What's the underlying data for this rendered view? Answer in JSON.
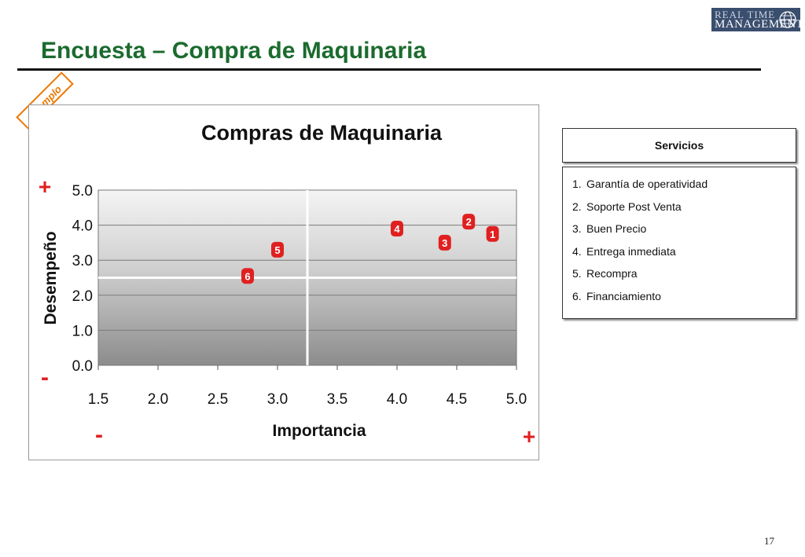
{
  "slide": {
    "title": "Encuesta – Compra de Maquinaria",
    "stamp": "Ejemplo",
    "logo_line1": "REAL TIME",
    "logo_line2": "MANAGEMENT",
    "page_number": "17"
  },
  "colors": {
    "title": "#1b6b2e",
    "marker": "#e02020",
    "stamp": "#ee7700"
  },
  "chart_data": {
    "type": "scatter",
    "title": "Compras de Maquinaria",
    "xlabel": "Importancia",
    "ylabel": "Desempeño",
    "xlim": [
      1.5,
      5.0
    ],
    "ylim": [
      0.0,
      5.0
    ],
    "x_ticks": [
      "1.5",
      "2.0",
      "2.5",
      "3.0",
      "3.5",
      "4.0",
      "4.5",
      "5.0"
    ],
    "y_ticks": [
      "0.0",
      "1.0",
      "2.0",
      "3.0",
      "4.0",
      "5.0"
    ],
    "quadrant_lines": {
      "x": 3.25,
      "y": 2.5
    },
    "axis_markers": {
      "y_high": "+",
      "y_low": "-",
      "x_low": "-",
      "x_high": "+"
    },
    "points": [
      {
        "label": "1",
        "x": 4.8,
        "y": 3.75
      },
      {
        "label": "2",
        "x": 4.6,
        "y": 4.1
      },
      {
        "label": "3",
        "x": 4.4,
        "y": 3.5
      },
      {
        "label": "4",
        "x": 4.0,
        "y": 3.9
      },
      {
        "label": "5",
        "x": 3.0,
        "y": 3.3
      },
      {
        "label": "6",
        "x": 2.75,
        "y": 2.55
      }
    ],
    "grid": true
  },
  "legend": {
    "header": "Servicios",
    "items": [
      {
        "num": "1.",
        "label": "Garantía de operatividad"
      },
      {
        "num": "2.",
        "label": "Soporte Post Venta"
      },
      {
        "num": "3.",
        "label": "Buen Precio"
      },
      {
        "num": "4.",
        "label": "Entrega inmediata"
      },
      {
        "num": "5.",
        "label": "Recompra"
      },
      {
        "num": "6.",
        "label": "Financiamiento"
      }
    ]
  }
}
